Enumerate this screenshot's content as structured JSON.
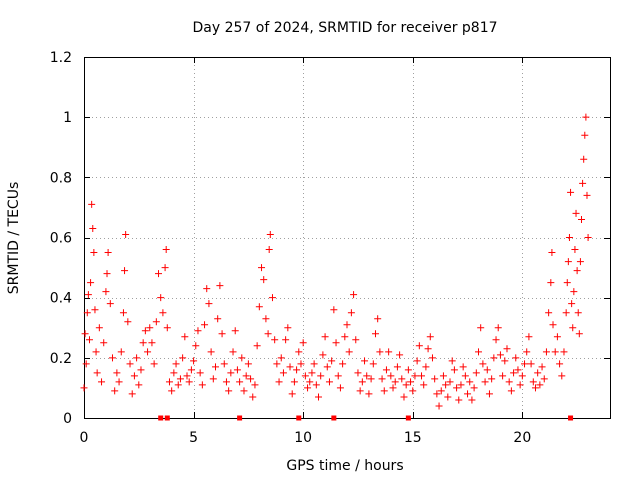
{
  "chart_data": {
    "type": "scatter",
    "title": "Day 257 of 2024, SRMTID for receiver p817",
    "xlabel": "GPS time / hours",
    "ylabel": "SRMTID / TECUs",
    "xlim": [
      0,
      24
    ],
    "ylim": [
      0,
      1.2
    ],
    "grid": true,
    "marker": "+",
    "color": "#ff0000",
    "xticks": [
      0,
      5,
      10,
      15,
      20
    ],
    "xtick_labels": [
      "0",
      "5",
      "10",
      "15",
      "20"
    ],
    "yticks": [
      0,
      0.2,
      0.4,
      0.6,
      0.8,
      1.0,
      1.2
    ],
    "ytick_labels": [
      "0",
      "0.2",
      "0.4",
      "0.6",
      "0.8",
      "1",
      "1.2"
    ],
    "baseline_markers_x": [
      3.5,
      3.8,
      7.1,
      9.8,
      11.4,
      14.8,
      22.2
    ],
    "series": [
      {
        "name": "SRMTID",
        "points": [
          [
            0.0,
            0.1
          ],
          [
            0.05,
            0.28
          ],
          [
            0.1,
            0.18
          ],
          [
            0.15,
            0.35
          ],
          [
            0.2,
            0.41
          ],
          [
            0.25,
            0.26
          ],
          [
            0.3,
            0.45
          ],
          [
            0.35,
            0.71
          ],
          [
            0.4,
            0.63
          ],
          [
            0.45,
            0.55
          ],
          [
            0.5,
            0.36
          ],
          [
            0.55,
            0.22
          ],
          [
            0.6,
            0.15
          ],
          [
            0.7,
            0.3
          ],
          [
            0.8,
            0.12
          ],
          [
            0.9,
            0.25
          ],
          [
            1.0,
            0.42
          ],
          [
            1.05,
            0.48
          ],
          [
            1.1,
            0.55
          ],
          [
            1.2,
            0.38
          ],
          [
            1.3,
            0.2
          ],
          [
            1.4,
            0.09
          ],
          [
            1.5,
            0.15
          ],
          [
            1.6,
            0.12
          ],
          [
            1.7,
            0.22
          ],
          [
            1.8,
            0.35
          ],
          [
            1.85,
            0.49
          ],
          [
            1.9,
            0.61
          ],
          [
            2.0,
            0.32
          ],
          [
            2.1,
            0.18
          ],
          [
            2.2,
            0.08
          ],
          [
            2.3,
            0.14
          ],
          [
            2.4,
            0.2
          ],
          [
            2.5,
            0.11
          ],
          [
            2.6,
            0.16
          ],
          [
            2.7,
            0.25
          ],
          [
            2.8,
            0.29
          ],
          [
            2.9,
            0.22
          ],
          [
            3.0,
            0.3
          ],
          [
            3.1,
            0.25
          ],
          [
            3.2,
            0.18
          ],
          [
            3.3,
            0.32
          ],
          [
            3.4,
            0.48
          ],
          [
            3.5,
            0.4
          ],
          [
            3.6,
            0.35
          ],
          [
            3.7,
            0.5
          ],
          [
            3.75,
            0.56
          ],
          [
            3.8,
            0.3
          ],
          [
            3.9,
            0.12
          ],
          [
            4.0,
            0.09
          ],
          [
            4.1,
            0.15
          ],
          [
            4.2,
            0.18
          ],
          [
            4.3,
            0.11
          ],
          [
            4.4,
            0.13
          ],
          [
            4.5,
            0.2
          ],
          [
            4.6,
            0.27
          ],
          [
            4.7,
            0.14
          ],
          [
            4.8,
            0.12
          ],
          [
            4.9,
            0.16
          ],
          [
            5.0,
            0.19
          ],
          [
            5.1,
            0.24
          ],
          [
            5.2,
            0.29
          ],
          [
            5.3,
            0.15
          ],
          [
            5.4,
            0.11
          ],
          [
            5.5,
            0.31
          ],
          [
            5.6,
            0.43
          ],
          [
            5.7,
            0.38
          ],
          [
            5.8,
            0.22
          ],
          [
            5.9,
            0.13
          ],
          [
            6.0,
            0.17
          ],
          [
            6.1,
            0.33
          ],
          [
            6.2,
            0.44
          ],
          [
            6.3,
            0.28
          ],
          [
            6.4,
            0.18
          ],
          [
            6.5,
            0.12
          ],
          [
            6.6,
            0.09
          ],
          [
            6.7,
            0.15
          ],
          [
            6.8,
            0.22
          ],
          [
            6.9,
            0.29
          ],
          [
            7.0,
            0.16
          ],
          [
            7.1,
            0.12
          ],
          [
            7.2,
            0.2
          ],
          [
            7.3,
            0.09
          ],
          [
            7.4,
            0.14
          ],
          [
            7.5,
            0.18
          ],
          [
            7.6,
            0.13
          ],
          [
            7.7,
            0.07
          ],
          [
            7.8,
            0.11
          ],
          [
            7.9,
            0.24
          ],
          [
            8.0,
            0.37
          ],
          [
            8.1,
            0.5
          ],
          [
            8.2,
            0.46
          ],
          [
            8.3,
            0.33
          ],
          [
            8.4,
            0.28
          ],
          [
            8.45,
            0.56
          ],
          [
            8.5,
            0.61
          ],
          [
            8.6,
            0.4
          ],
          [
            8.7,
            0.26
          ],
          [
            8.8,
            0.18
          ],
          [
            8.9,
            0.12
          ],
          [
            9.0,
            0.2
          ],
          [
            9.1,
            0.15
          ],
          [
            9.2,
            0.26
          ],
          [
            9.3,
            0.3
          ],
          [
            9.4,
            0.17
          ],
          [
            9.5,
            0.08
          ],
          [
            9.6,
            0.12
          ],
          [
            9.7,
            0.16
          ],
          [
            9.8,
            0.22
          ],
          [
            9.9,
            0.18
          ],
          [
            10.0,
            0.25
          ],
          [
            10.1,
            0.14
          ],
          [
            10.2,
            0.1
          ],
          [
            10.3,
            0.12
          ],
          [
            10.4,
            0.15
          ],
          [
            10.5,
            0.18
          ],
          [
            10.6,
            0.11
          ],
          [
            10.7,
            0.07
          ],
          [
            10.8,
            0.14
          ],
          [
            10.9,
            0.21
          ],
          [
            11.0,
            0.27
          ],
          [
            11.1,
            0.17
          ],
          [
            11.2,
            0.12
          ],
          [
            11.3,
            0.19
          ],
          [
            11.4,
            0.36
          ],
          [
            11.5,
            0.25
          ],
          [
            11.6,
            0.14
          ],
          [
            11.7,
            0.1
          ],
          [
            11.8,
            0.18
          ],
          [
            11.9,
            0.27
          ],
          [
            12.0,
            0.31
          ],
          [
            12.1,
            0.22
          ],
          [
            12.2,
            0.35
          ],
          [
            12.3,
            0.41
          ],
          [
            12.4,
            0.26
          ],
          [
            12.5,
            0.15
          ],
          [
            12.6,
            0.09
          ],
          [
            12.7,
            0.12
          ],
          [
            12.8,
            0.19
          ],
          [
            12.9,
            0.14
          ],
          [
            13.0,
            0.08
          ],
          [
            13.1,
            0.13
          ],
          [
            13.2,
            0.18
          ],
          [
            13.3,
            0.28
          ],
          [
            13.4,
            0.33
          ],
          [
            13.5,
            0.22
          ],
          [
            13.6,
            0.13
          ],
          [
            13.7,
            0.09
          ],
          [
            13.8,
            0.16
          ],
          [
            13.9,
            0.22
          ],
          [
            14.0,
            0.14
          ],
          [
            14.1,
            0.1
          ],
          [
            14.2,
            0.12
          ],
          [
            14.3,
            0.17
          ],
          [
            14.4,
            0.21
          ],
          [
            14.5,
            0.13
          ],
          [
            14.6,
            0.07
          ],
          [
            14.7,
            0.11
          ],
          [
            14.8,
            0.16
          ],
          [
            14.9,
            0.12
          ],
          [
            15.0,
            0.09
          ],
          [
            15.1,
            0.14
          ],
          [
            15.2,
            0.19
          ],
          [
            15.3,
            0.24
          ],
          [
            15.4,
            0.14
          ],
          [
            15.5,
            0.11
          ],
          [
            15.6,
            0.17
          ],
          [
            15.7,
            0.23
          ],
          [
            15.8,
            0.27
          ],
          [
            15.9,
            0.2
          ],
          [
            16.0,
            0.13
          ],
          [
            16.1,
            0.08
          ],
          [
            16.2,
            0.04
          ],
          [
            16.3,
            0.09
          ],
          [
            16.4,
            0.14
          ],
          [
            16.5,
            0.11
          ],
          [
            16.6,
            0.07
          ],
          [
            16.7,
            0.12
          ],
          [
            16.8,
            0.19
          ],
          [
            16.9,
            0.16
          ],
          [
            17.0,
            0.1
          ],
          [
            17.1,
            0.06
          ],
          [
            17.2,
            0.11
          ],
          [
            17.3,
            0.17
          ],
          [
            17.4,
            0.14
          ],
          [
            17.5,
            0.08
          ],
          [
            17.6,
            0.12
          ],
          [
            17.7,
            0.06
          ],
          [
            17.8,
            0.1
          ],
          [
            17.9,
            0.15
          ],
          [
            18.0,
            0.22
          ],
          [
            18.1,
            0.3
          ],
          [
            18.2,
            0.18
          ],
          [
            18.3,
            0.12
          ],
          [
            18.4,
            0.16
          ],
          [
            18.5,
            0.08
          ],
          [
            18.6,
            0.13
          ],
          [
            18.7,
            0.2
          ],
          [
            18.8,
            0.26
          ],
          [
            18.9,
            0.3
          ],
          [
            19.0,
            0.21
          ],
          [
            19.1,
            0.14
          ],
          [
            19.2,
            0.19
          ],
          [
            19.3,
            0.23
          ],
          [
            19.4,
            0.12
          ],
          [
            19.5,
            0.09
          ],
          [
            19.6,
            0.15
          ],
          [
            19.7,
            0.2
          ],
          [
            19.8,
            0.16
          ],
          [
            19.9,
            0.11
          ],
          [
            20.0,
            0.14
          ],
          [
            20.1,
            0.18
          ],
          [
            20.2,
            0.22
          ],
          [
            20.3,
            0.27
          ],
          [
            20.4,
            0.18
          ],
          [
            20.5,
            0.12
          ],
          [
            20.6,
            0.1
          ],
          [
            20.7,
            0.15
          ],
          [
            20.8,
            0.11
          ],
          [
            20.9,
            0.17
          ],
          [
            21.0,
            0.13
          ],
          [
            21.1,
            0.22
          ],
          [
            21.2,
            0.35
          ],
          [
            21.3,
            0.45
          ],
          [
            21.35,
            0.55
          ],
          [
            21.4,
            0.31
          ],
          [
            21.5,
            0.22
          ],
          [
            21.6,
            0.27
          ],
          [
            21.7,
            0.18
          ],
          [
            21.8,
            0.14
          ],
          [
            21.9,
            0.22
          ],
          [
            22.0,
            0.35
          ],
          [
            22.05,
            0.45
          ],
          [
            22.1,
            0.52
          ],
          [
            22.15,
            0.6
          ],
          [
            22.2,
            0.75
          ],
          [
            22.25,
            0.38
          ],
          [
            22.3,
            0.3
          ],
          [
            22.35,
            0.42
          ],
          [
            22.4,
            0.56
          ],
          [
            22.45,
            0.68
          ],
          [
            22.5,
            0.49
          ],
          [
            22.55,
            0.35
          ],
          [
            22.6,
            0.28
          ],
          [
            22.65,
            0.52
          ],
          [
            22.7,
            0.66
          ],
          [
            22.75,
            0.78
          ],
          [
            22.8,
            0.86
          ],
          [
            22.85,
            0.94
          ],
          [
            22.9,
            1.0
          ],
          [
            22.95,
            0.74
          ],
          [
            23.0,
            0.6
          ]
        ]
      }
    ]
  }
}
